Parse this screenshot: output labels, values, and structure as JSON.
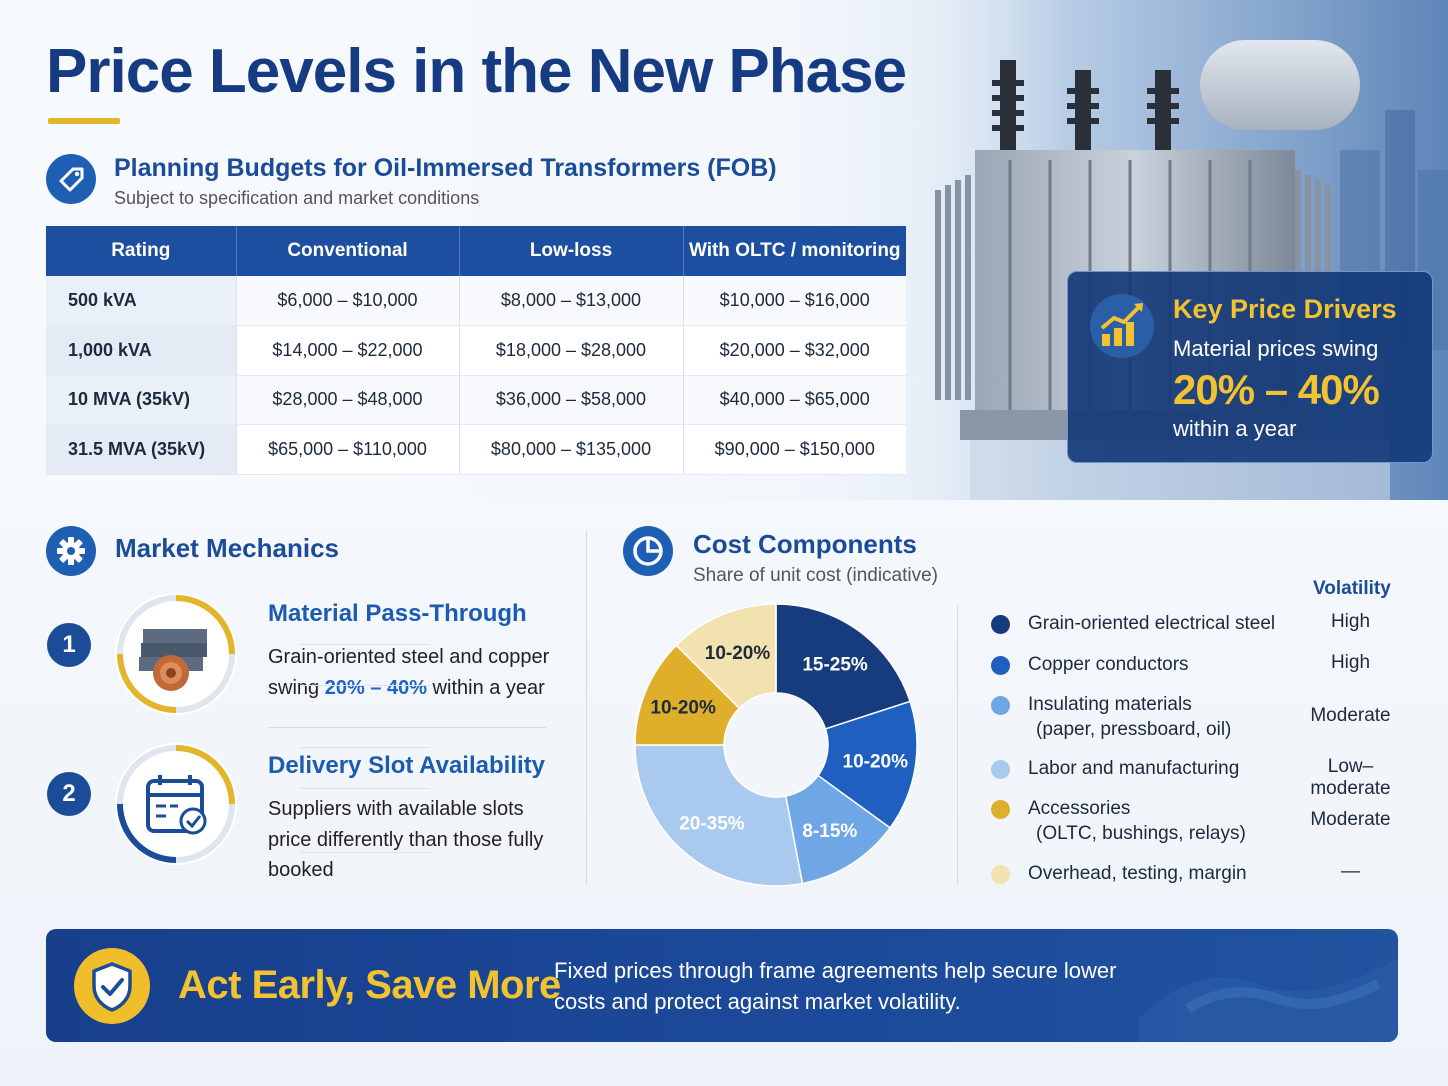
{
  "page": {
    "title": "Price Levels in the New Phase"
  },
  "budgets": {
    "title": "Planning Budgets for Oil-Immersed Transformers (FOB)",
    "subtitle": "Subject to specification and market conditions",
    "icon": "price-tag-icon",
    "columns": [
      "Rating",
      "Conventional",
      "Low-loss",
      "With OLTC / monitoring"
    ],
    "rows": [
      [
        "500 kVA",
        "$6,000 – $10,000",
        "$8,000 – $13,000",
        "$10,000 – $16,000"
      ],
      [
        "1,000 kVA",
        "$14,000 – $22,000",
        "$18,000 – $28,000",
        "$20,000 – $32,000"
      ],
      [
        "10 MVA (35kV)",
        "$28,000 – $48,000",
        "$36,000 – $58,000",
        "$40,000 – $65,000"
      ],
      [
        "31.5 MVA (35kV)",
        "$65,000 – $110,000",
        "$80,000 – $135,000",
        "$90,000 – $150,000"
      ]
    ]
  },
  "drivers": {
    "title": "Key Price Drivers",
    "line": "Material prices swing",
    "range": "20% – 40%",
    "foot": "within a year",
    "icon": "rising-bar-chart-icon"
  },
  "mechanics": {
    "title": "Market Mechanics",
    "icon": "gear-icon",
    "items": [
      {
        "number": "1",
        "title": "Material Pass-Through",
        "body_pre": "Grain-oriented steel and copper swing ",
        "body_highlight": "20% – 40%",
        "body_post": " within a year",
        "icon": "steel-and-copper-coil-icon"
      },
      {
        "number": "2",
        "title": "Delivery Slot Availability",
        "body": "Suppliers with available slots price differently than those fully booked",
        "icon": "calendar-check-icon"
      }
    ]
  },
  "costs": {
    "title": "Cost Components",
    "subtitle": "Share of unit cost (indicative)",
    "icon": "pie-chart-icon",
    "volatility_header": "Volatility",
    "components": [
      {
        "label": "Grain-oriented electrical steel",
        "label2": "",
        "share": "15-25%",
        "volatility": "High",
        "color": "#173c7d"
      },
      {
        "label": "Copper conductors",
        "label2": "",
        "share": "10-20%",
        "volatility": "High",
        "color": "#1f5fbf"
      },
      {
        "label": "Insulating materials",
        "label2": "(paper, pressboard, oil)",
        "share": "8-15%",
        "volatility": "Moderate",
        "color": "#6ea6e6"
      },
      {
        "label": "Labor and manufacturing",
        "label2": "",
        "share": "20-35%",
        "volatility": "Low–moderate",
        "color": "#a9c9ee"
      },
      {
        "label": "Accessories",
        "label2": "(OLTC, bushings, relays)",
        "share": "10-20%",
        "volatility": "Moderate",
        "color": "#dfae2a"
      },
      {
        "label": "Overhead, testing, margin",
        "label2": "",
        "share": "10-20%",
        "volatility": "—",
        "color": "#f2e2b0"
      }
    ]
  },
  "chart_data": {
    "type": "pie",
    "title": "Cost Components",
    "subtitle": "Share of unit cost (indicative)",
    "categories": [
      "Grain-oriented electrical steel",
      "Copper conductors",
      "Insulating materials",
      "Labor and manufacturing",
      "Accessories",
      "Overhead, testing, margin"
    ],
    "labels": [
      "15-25%",
      "10-20%",
      "8-15%",
      "20-35%",
      "10-20%",
      "10-20%"
    ],
    "values": [
      20,
      15,
      12,
      28,
      12.5,
      12.5
    ],
    "colors": [
      "#173c7d",
      "#1f5fbf",
      "#6ea6e6",
      "#a9c9ee",
      "#dfae2a",
      "#f2e2b0"
    ]
  },
  "banner": {
    "title": "Act Early, Save More",
    "text": "Fixed prices through frame agreements help secure lower costs and protect against market volatility.",
    "icon": "shield-check-icon"
  }
}
